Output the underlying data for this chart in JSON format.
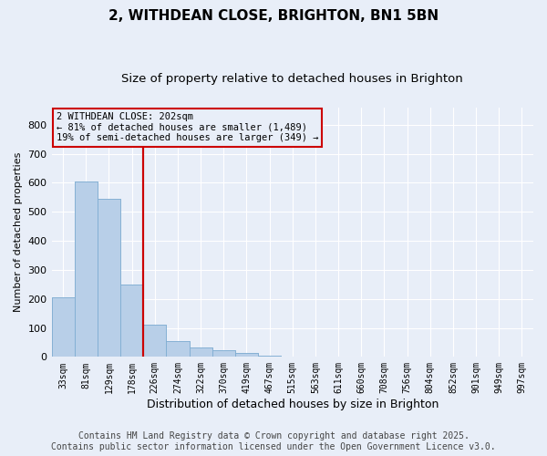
{
  "title1": "2, WITHDEAN CLOSE, BRIGHTON, BN1 5BN",
  "title2": "Size of property relative to detached houses in Brighton",
  "xlabel": "Distribution of detached houses by size in Brighton",
  "ylabel": "Number of detached properties",
  "bar_color": "#b8cfe8",
  "bar_edge_color": "#7aaad0",
  "categories": [
    "33sqm",
    "81sqm",
    "129sqm",
    "178sqm",
    "226sqm",
    "274sqm",
    "322sqm",
    "370sqm",
    "419sqm",
    "467sqm",
    "515sqm",
    "563sqm",
    "611sqm",
    "660sqm",
    "708sqm",
    "756sqm",
    "804sqm",
    "852sqm",
    "901sqm",
    "949sqm",
    "997sqm"
  ],
  "values": [
    205,
    605,
    545,
    250,
    112,
    55,
    32,
    22,
    15,
    5,
    2,
    0,
    2,
    0,
    0,
    1,
    0,
    0,
    0,
    0,
    0
  ],
  "ylim": [
    0,
    860
  ],
  "yticks": [
    0,
    100,
    200,
    300,
    400,
    500,
    600,
    700,
    800
  ],
  "vline_index": 3,
  "vline_color": "#cc0000",
  "annotation_text": "2 WITHDEAN CLOSE: 202sqm\n← 81% of detached houses are smaller (1,489)\n19% of semi-detached houses are larger (349) →",
  "annotation_box_color": "#cc0000",
  "annotation_text_color": "#000000",
  "background_color": "#e8eef8",
  "footer1": "Contains HM Land Registry data © Crown copyright and database right 2025.",
  "footer2": "Contains public sector information licensed under the Open Government Licence v3.0.",
  "grid_color": "#ffffff",
  "title_fontsize": 11,
  "subtitle_fontsize": 9.5,
  "footer_fontsize": 7,
  "ylabel_fontsize": 8,
  "xlabel_fontsize": 9
}
